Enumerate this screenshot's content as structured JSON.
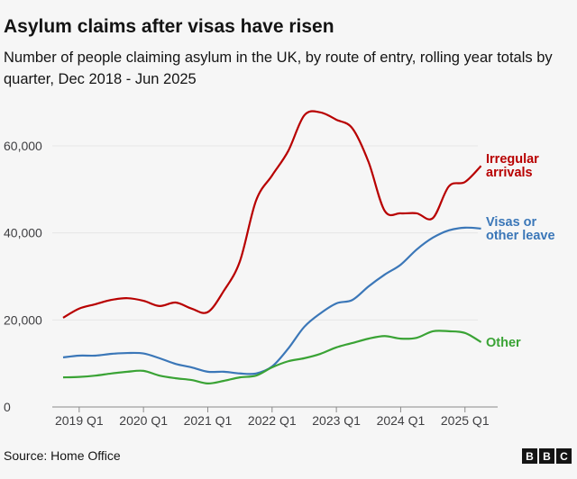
{
  "title": "Asylum claims after visas have risen",
  "subtitle": "Number of people claiming asylum in the UK, by route of entry, rolling year totals by quarter, Dec 2018 - Jun 2025",
  "source": "Source: Home Office",
  "logo": "BBC",
  "chart_data": {
    "type": "line",
    "title": "Asylum claims after visas have risen",
    "xlabel": "",
    "ylabel": "",
    "ylim": [
      0,
      70000
    ],
    "yticks": [
      0,
      20000,
      40000,
      60000
    ],
    "ytick_labels": [
      "0",
      "20,000",
      "40,000",
      "60,000"
    ],
    "xtick_labels": [
      "2019 Q1",
      "2020 Q1",
      "2021 Q1",
      "2022 Q1",
      "2023 Q1",
      "2024 Q1",
      "2025 Q1"
    ],
    "xtick_index": [
      1,
      5,
      9,
      13,
      17,
      21,
      25
    ],
    "grid": true,
    "x": [
      "2018 Q4",
      "2019 Q1",
      "2019 Q2",
      "2019 Q3",
      "2019 Q4",
      "2020 Q1",
      "2020 Q2",
      "2020 Q3",
      "2020 Q4",
      "2021 Q1",
      "2021 Q2",
      "2021 Q3",
      "2021 Q4",
      "2022 Q1",
      "2022 Q2",
      "2022 Q3",
      "2022 Q4",
      "2023 Q1",
      "2023 Q2",
      "2023 Q3",
      "2023 Q4",
      "2024 Q1",
      "2024 Q2",
      "2024 Q3",
      "2024 Q4",
      "2025 Q1",
      "2025 Q2"
    ],
    "series": [
      {
        "name": "Irregular arrivals",
        "label_lines": [
          "Irregular",
          "arrivals"
        ],
        "color": "#b80000",
        "values": [
          20500,
          22600,
          23600,
          24600,
          25000,
          24400,
          23200,
          24000,
          22600,
          21800,
          26700,
          33500,
          47400,
          53200,
          58800,
          67000,
          67700,
          66000,
          64000,
          56300,
          45100,
          44500,
          44500,
          43400,
          50700,
          51700,
          55400
        ]
      },
      {
        "name": "Visas or other leave",
        "label_lines": [
          "Visas or",
          "other leave"
        ],
        "color": "#3b77b8",
        "values": [
          11400,
          11800,
          11800,
          12200,
          12400,
          12300,
          11200,
          9900,
          9100,
          8100,
          8100,
          7700,
          7700,
          9300,
          13400,
          18400,
          21500,
          23800,
          24600,
          27700,
          30400,
          32700,
          36200,
          38900,
          40600,
          41200,
          41000
        ]
      },
      {
        "name": "Other",
        "label_lines": [
          "Other"
        ],
        "color": "#3aa335",
        "values": [
          6800,
          6900,
          7200,
          7700,
          8100,
          8300,
          7200,
          6600,
          6200,
          5400,
          6000,
          6800,
          7200,
          9100,
          10500,
          11200,
          12200,
          13700,
          14700,
          15700,
          16300,
          15700,
          15900,
          17400,
          17400,
          17000,
          14900
        ]
      }
    ]
  }
}
